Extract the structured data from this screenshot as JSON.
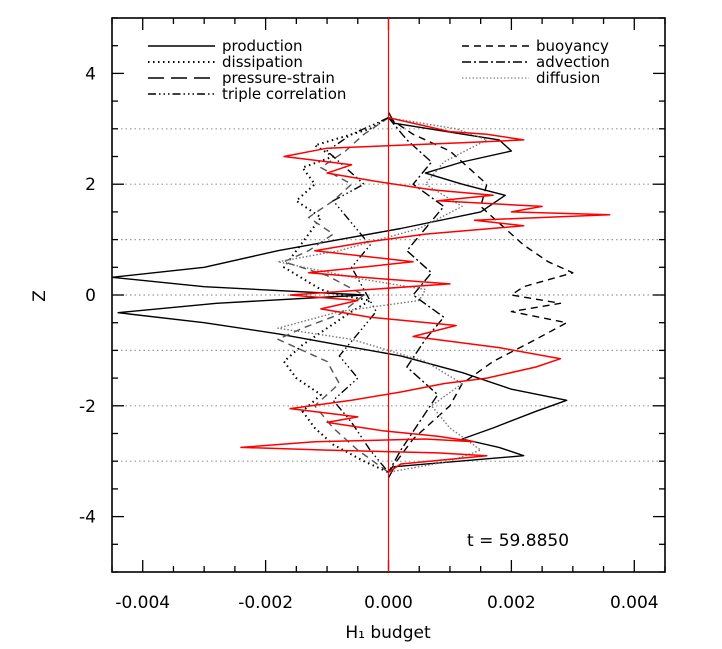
{
  "chart_data": {
    "type": "line",
    "title": "",
    "xlabel": "H₁ budget",
    "ylabel": "Z",
    "xlim": [
      -0.0045,
      0.0045
    ],
    "ylim": [
      -5,
      5
    ],
    "xticks": [
      "-0.004",
      "-0.002",
      "0.000",
      "0.002",
      "0.004"
    ],
    "yticks": [
      "4",
      "2",
      "0",
      "-2",
      "-4"
    ],
    "xtick_values": [
      -0.004,
      -0.002,
      0.0,
      0.002,
      0.004
    ],
    "ytick_values": [
      4,
      2,
      0,
      -2,
      -4
    ],
    "reference_lines_z": [
      3,
      2,
      1,
      0,
      -1,
      -2,
      -3
    ],
    "annotation": "t = 59.8850",
    "grid": false,
    "legend_placement": "top",
    "series": [
      {
        "name": "production",
        "style": "solid",
        "color": "#000000",
        "x": [
          0,
          0.0001,
          0.0018,
          0.002,
          0.0012,
          0.0006,
          0.0012,
          0.0019,
          0.0015,
          0.0002,
          -0.0008,
          -0.0018,
          -0.003,
          -0.0045,
          -0.003,
          -0.0004,
          -0.0028,
          -0.0044,
          -0.003,
          -0.0018,
          -0.0008,
          0.0002,
          0.0012,
          0.002,
          0.0029,
          0.0024,
          0.0017,
          0.0012,
          0.0018,
          0.0022,
          0.0001,
          0
        ],
        "y": [
          3.3,
          3.1,
          2.8,
          2.6,
          2.4,
          2.2,
          2.0,
          1.8,
          1.5,
          1.2,
          1.0,
          0.8,
          0.5,
          0.32,
          0.15,
          0,
          -0.15,
          -0.32,
          -0.5,
          -0.7,
          -0.9,
          -1.1,
          -1.4,
          -1.7,
          -1.9,
          -2.1,
          -2.4,
          -2.6,
          -2.75,
          -2.9,
          -3.1,
          -3.3
        ]
      },
      {
        "name": "dissipation",
        "style": "dotted",
        "color": "#000000",
        "x": [
          0,
          -0.0003,
          -0.0012,
          -0.0009,
          -0.0014,
          -0.0012,
          -0.0015,
          -0.0011,
          -0.0013,
          -0.0015,
          -0.0017,
          -0.0014,
          -0.0011,
          -0.0008,
          -0.0003,
          -0.0006,
          -0.001,
          -0.0014,
          -0.0017,
          -0.0015,
          -0.0011,
          -0.0014,
          -0.0012,
          -0.0009,
          -0.0004,
          0
        ],
        "y": [
          3.2,
          3.0,
          2.7,
          2.5,
          2.3,
          2.0,
          1.7,
          1.4,
          1.1,
          0.8,
          0.5,
          0.3,
          0.1,
          0,
          -0.1,
          -0.3,
          -0.6,
          -0.9,
          -1.2,
          -1.5,
          -1.8,
          -2.1,
          -2.4,
          -2.7,
          -3.0,
          -3.2
        ]
      },
      {
        "name": "pressure-strain",
        "style": "dashed",
        "color": "#555555",
        "x": [
          0,
          -0.0004,
          -0.0007,
          -0.0011,
          -0.0006,
          -0.0009,
          -0.0013,
          -0.0009,
          -0.0013,
          -0.0017,
          -0.001,
          -0.0004,
          -0.0008,
          -0.0014,
          -0.0018,
          -0.001,
          -0.0008,
          -0.0012,
          -0.0009,
          -0.0005,
          0
        ],
        "y": [
          3.2,
          2.9,
          2.6,
          2.3,
          2.0,
          1.7,
          1.4,
          1.1,
          0.8,
          0.6,
          0.35,
          0,
          -0.35,
          -0.6,
          -0.8,
          -1.2,
          -1.6,
          -2.0,
          -2.4,
          -2.8,
          -3.2
        ]
      },
      {
        "name": "triple correlation",
        "style": "dashdotdot",
        "color": "#000000",
        "x": [
          0,
          -0.0006,
          -0.001,
          -0.0007,
          -0.0004,
          -0.0009,
          -0.0006,
          -0.0003,
          -0.0006,
          -0.0004,
          -0.0002,
          -0.0005,
          -0.0008,
          -0.0005,
          -0.0009,
          -0.0006,
          -0.0003,
          0
        ],
        "y": [
          3.2,
          2.9,
          2.6,
          2.3,
          2.0,
          1.7,
          1.3,
          0.9,
          0.5,
          0.1,
          -0.3,
          -0.7,
          -1.1,
          -1.5,
          -1.9,
          -2.3,
          -2.8,
          -3.2
        ]
      },
      {
        "name": "buoyancy",
        "style": "dashed",
        "color": "#000000",
        "x": [
          0,
          0.0004,
          0.001,
          0.0013,
          0.0016,
          0.0015,
          0.0019,
          0.0022,
          0.0026,
          0.003,
          0.0022,
          0.002,
          0.0028,
          0.002,
          0.0029,
          0.0024,
          0.0017,
          0.0012,
          0.001,
          0.0004,
          0
        ],
        "y": [
          3.2,
          2.9,
          2.6,
          2.3,
          2.0,
          1.6,
          1.2,
          0.9,
          0.6,
          0.4,
          0.15,
          0,
          -0.15,
          -0.3,
          -0.5,
          -0.8,
          -1.2,
          -1.6,
          -2.0,
          -2.6,
          -3.2
        ]
      },
      {
        "name": "advection",
        "style": "dashdot",
        "color": "#000000",
        "x": [
          0,
          0.0003,
          0.0007,
          0.0004,
          0.0009,
          0.0006,
          0.0003,
          0.0007,
          0.0004,
          0.0009,
          0.0006,
          0.0003,
          0.0008,
          0.0005,
          0.0002,
          0
        ],
        "y": [
          3.2,
          2.8,
          2.4,
          2.0,
          1.6,
          1.2,
          0.8,
          0.4,
          0,
          -0.4,
          -0.8,
          -1.3,
          -1.8,
          -2.3,
          -2.8,
          -3.2
        ]
      },
      {
        "name": "diffusion",
        "style": "dotted-fine",
        "color": "#777777",
        "x": [
          0,
          0.0011,
          0.0016,
          0.0009,
          0.0006,
          0.0012,
          0.0005,
          -0.0008,
          -0.0018,
          -0.0005,
          0.0006,
          0.0005,
          -0.0008,
          -0.0018,
          -0.0006,
          0.0006,
          0.0012,
          0.0007,
          0.001,
          0.0015,
          0.001,
          0
        ],
        "y": [
          3.2,
          3.0,
          2.8,
          2.4,
          2.0,
          1.6,
          1.2,
          0.8,
          0.6,
          0.3,
          0.1,
          -0.1,
          -0.3,
          -0.6,
          -0.8,
          -1.2,
          -1.6,
          -2.0,
          -2.4,
          -2.8,
          -3.0,
          -3.2
        ]
      },
      {
        "name": "",
        "style": "solid",
        "color": "#ff0000",
        "x": [
          0,
          0.0006,
          0.001,
          0.0016,
          0.0022,
          0.0012,
          -0.001,
          -0.0017,
          -0.0006,
          -0.001,
          -0.0002,
          0.0007,
          0.0017,
          0.0008,
          0.0025,
          0.002,
          0.0036,
          0.0014,
          0.0022,
          0.0006,
          -0.0004,
          -0.0012,
          0.0004,
          -0.0013,
          -0.0002,
          0.001,
          -0.0016,
          -0.0005,
          -0.0011,
          -0.0003,
          0.0011,
          0.0004,
          0.0018,
          0.0028,
          0.0024,
          0.0016,
          0.0009,
          0.0002,
          -0.0006,
          -0.0016,
          -0.0005,
          -0.001,
          -0.0001,
          0.0008,
          0.0014,
          0.0006,
          -0.0012,
          -0.0024,
          -0.001,
          0.0008,
          0.0016,
          0.0002,
          0
        ],
        "y": [
          3.2,
          3.05,
          2.95,
          2.9,
          2.8,
          2.75,
          2.65,
          2.5,
          2.35,
          2.2,
          2.05,
          1.9,
          1.8,
          1.7,
          1.6,
          1.5,
          1.45,
          1.35,
          1.25,
          1.1,
          0.95,
          0.8,
          0.6,
          0.4,
          0.3,
          0.2,
          0,
          -0.1,
          -0.25,
          -0.4,
          -0.55,
          -0.75,
          -0.95,
          -1.15,
          -1.3,
          -1.5,
          -1.6,
          -1.75,
          -1.9,
          -2.05,
          -2.2,
          -2.3,
          -2.45,
          -2.55,
          -2.65,
          -2.6,
          -2.65,
          -2.75,
          -2.8,
          -2.85,
          -2.9,
          -3.05,
          -3.2
        ]
      }
    ]
  },
  "legend": {
    "left": [
      "production",
      "dissipation",
      "pressure-strain",
      "triple correlation"
    ],
    "right": [
      "buoyancy",
      "advection",
      "diffusion"
    ]
  }
}
